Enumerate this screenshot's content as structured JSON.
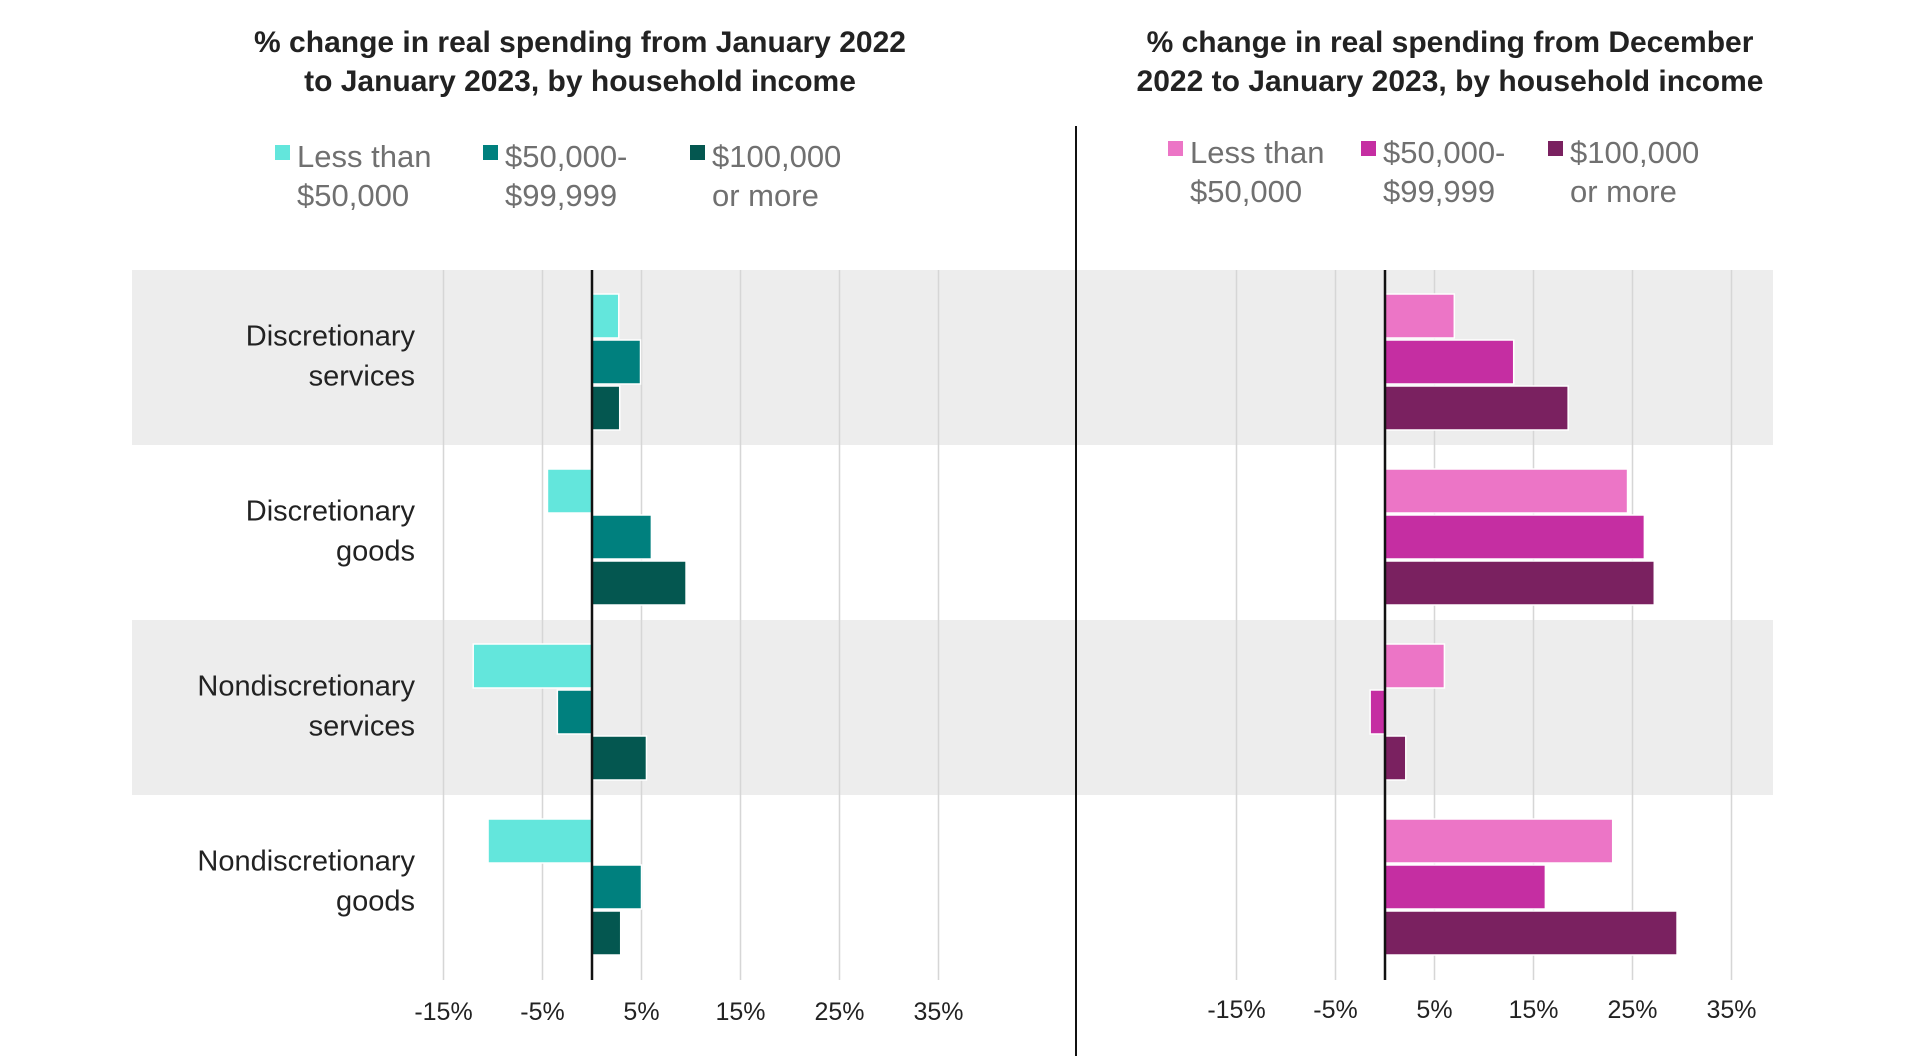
{
  "chart_data": [
    {
      "type": "bar",
      "orientation": "horizontal",
      "title": [
        "% change in real spending from January 2022",
        "to January 2023, by household income"
      ],
      "categories": [
        [
          "Discretionary",
          "services"
        ],
        [
          "Discretionary",
          "goods"
        ],
        [
          "Nondiscretionary",
          "services"
        ],
        [
          "Nondiscretionary",
          "goods"
        ]
      ],
      "series": [
        {
          "name": [
            "Less than",
            "$50,000"
          ],
          "color": "#63e6dc",
          "values": [
            2.7,
            -4.5,
            -12.0,
            -10.5
          ]
        },
        {
          "name": [
            "$50,000-",
            "$99,999"
          ],
          "color": "#00807e",
          "values": [
            4.9,
            6.0,
            -3.5,
            5.0
          ]
        },
        {
          "name": [
            "$100,000",
            "or more"
          ],
          "color": "#045750",
          "values": [
            2.8,
            9.5,
            5.5,
            2.9
          ]
        }
      ],
      "xticks": [
        "-15%",
        "-5%",
        "5%",
        "15%",
        "25%",
        "35%"
      ],
      "xtick_values": [
        -15,
        -5,
        5,
        15,
        25,
        35
      ],
      "xlim": [
        -18.5,
        37
      ],
      "grid": true,
      "legend_position": "top"
    },
    {
      "type": "bar",
      "orientation": "horizontal",
      "title": [
        "% change in real spending from December",
        "2022 to January 2023, by household income"
      ],
      "categories": [
        [
          "Discretionary",
          "services"
        ],
        [
          "Discretionary",
          "goods"
        ],
        [
          "Nondiscretionary",
          "services"
        ],
        [
          "Nondiscretionary",
          "goods"
        ]
      ],
      "series": [
        {
          "name": [
            "Less than",
            "$50,000"
          ],
          "color": "#ec75c6",
          "values": [
            7.0,
            24.5,
            6.0,
            23.0
          ]
        },
        {
          "name": [
            "$50,000-",
            "$99,999"
          ],
          "color": "#c52ea2",
          "values": [
            13.0,
            26.2,
            -1.5,
            16.2
          ]
        },
        {
          "name": [
            "$100,000",
            "or more"
          ],
          "color": "#7a2160",
          "values": [
            18.5,
            27.2,
            2.1,
            29.5
          ]
        }
      ],
      "xticks": [
        "-15%",
        "-5%",
        "5%",
        "15%",
        "25%",
        "35%"
      ],
      "xtick_values": [
        -15,
        -5,
        5,
        15,
        25,
        35
      ],
      "xlim": [
        -18.5,
        37
      ],
      "grid": true,
      "legend_position": "top"
    }
  ]
}
